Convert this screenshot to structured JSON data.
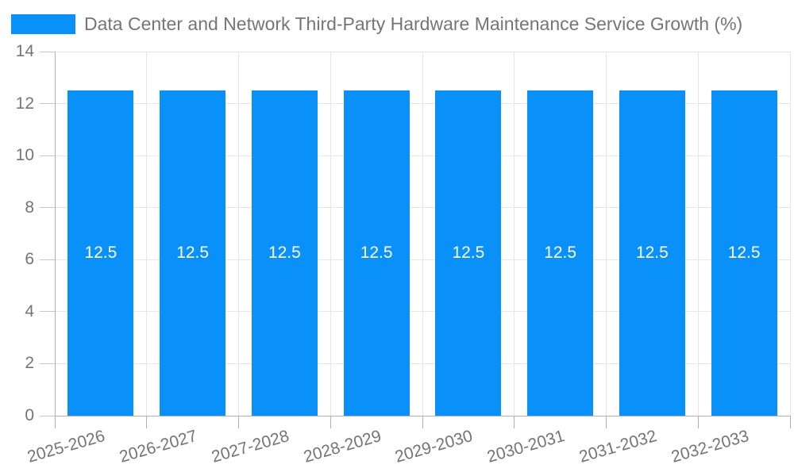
{
  "colors": {
    "bar": "#0991f9",
    "grid": "#e6e6e6",
    "axis": "#b0b0b0",
    "tick": "#c9c9c9",
    "text": "#757575",
    "bar_label": "#ffffff",
    "background": "#ffffff"
  },
  "legend": {
    "swatch_color": "#0991f9"
  },
  "chart_data": {
    "type": "bar",
    "title": "Data Center and Network Third-Party Hardware Maintenance Service Growth (%)",
    "categories": [
      "2025-2026",
      "2026-2027",
      "2027-2028",
      "2028-2029",
      "2029-2030",
      "2030-2031",
      "2031-2032",
      "2032-2033"
    ],
    "values": [
      12.5,
      12.5,
      12.5,
      12.5,
      12.5,
      12.5,
      12.5,
      12.5
    ],
    "bar_labels": [
      "12.5",
      "12.5",
      "12.5",
      "12.5",
      "12.5",
      "12.5",
      "12.5",
      "12.5"
    ],
    "xlabel": "",
    "ylabel": "",
    "ylim": [
      0,
      14
    ],
    "yticks": [
      0,
      2,
      4,
      6,
      8,
      10,
      12,
      14
    ],
    "grid": true,
    "legend_position": "top-left",
    "x_label_rotation_deg": -16
  }
}
